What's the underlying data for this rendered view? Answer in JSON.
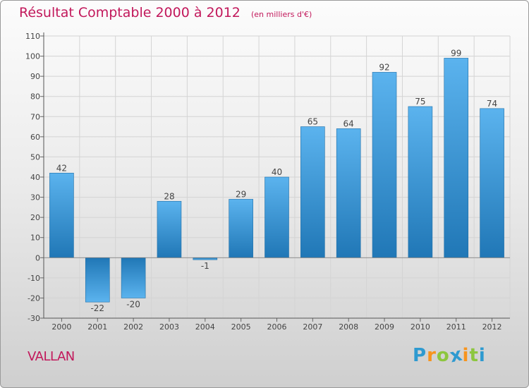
{
  "chart_data": {
    "type": "bar",
    "title": "Résultat Comptable 2000 à 2012",
    "subtitle": "(en milliers d'€)",
    "categories": [
      "2000",
      "2001",
      "2002",
      "2003",
      "2004",
      "2005",
      "2006",
      "2007",
      "2008",
      "2009",
      "2010",
      "2011",
      "2012"
    ],
    "values": [
      42,
      -22,
      -20,
      28,
      -1,
      29,
      40,
      65,
      64,
      92,
      75,
      99,
      74
    ],
    "data_labels": [
      "42",
      "-22",
      "-20",
      "28",
      "-1",
      "29",
      "40",
      "65",
      "64",
      "92",
      "75",
      "99",
      "74"
    ],
    "ylim": [
      -30,
      110
    ],
    "yticks": [
      -30,
      -20,
      -10,
      0,
      10,
      20,
      30,
      40,
      50,
      60,
      70,
      80,
      90,
      100,
      110
    ],
    "xlabel": "",
    "ylabel": "",
    "grid": true,
    "legend": "none",
    "bar_color_light": "#5bb3ee",
    "bar_color_dark": "#2077b6"
  },
  "commune": "VALLAN",
  "logo": {
    "letters": [
      "P",
      "r",
      "o",
      "x",
      "i",
      "t",
      "i"
    ],
    "colors": [
      "#2e9ad0",
      "#f7941d",
      "#8dc63f",
      "#2e9ad0",
      "#f7941d",
      "#8dc63f",
      "#2e9ad0"
    ]
  }
}
